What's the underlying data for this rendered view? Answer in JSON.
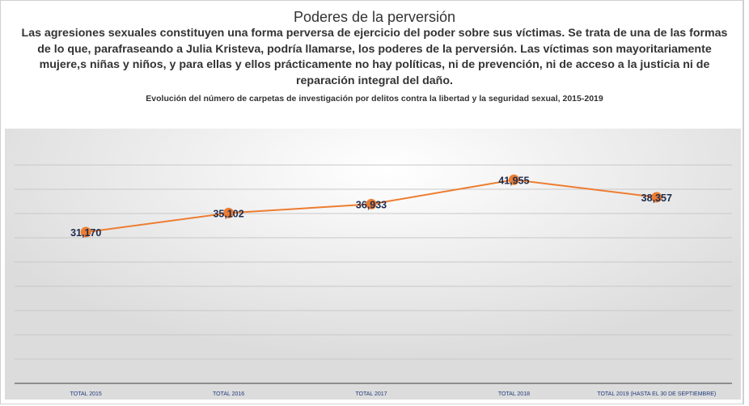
{
  "header": {
    "title": "Poderes de la perversión",
    "description": "Las agresiones sexuales constituyen una forma perversa de ejercicio del poder sobre sus víctimas. Se trata de una de las formas de lo que, parafraseando a Julia Kristeva, podría llamarse, los poderes de la perversión. Las víctimas son mayoritariamente mujere,s niñas y niños, y para ellas y ellos prácticamente no hay políticas, ni de prevención, ni de acceso a la justicia ni de reparación integral del daño.",
    "subtitle": "Evolución del número de carpetas de investigación por delitos contra la libertad y la seguridad sexual, 2015-2019"
  },
  "chart_data": {
    "type": "line",
    "title": "Evolución del número de carpetas de investigación por delitos contra la libertad y la seguridad sexual, 2015-2019",
    "categories": [
      "TOTAL 2015",
      "TOTAL 2016",
      "TOTAL 2017",
      "TOTAL 2018",
      "TOTAL 2019 (HASTA EL 30 DE SEPTIEMBRE)"
    ],
    "values": [
      31170,
      35102,
      36933,
      41955,
      38357
    ],
    "data_labels": [
      "31,170",
      "35,102",
      "36,933",
      "41,955",
      "38,357"
    ],
    "xlabel": "",
    "ylabel": "",
    "ylim": [
      0,
      50000
    ],
    "gridline_step": 5000,
    "grid": true,
    "y_tick_labels_shown": false,
    "legend": "none",
    "colors": {
      "line": "#ed7d31",
      "marker": "#ed7d31",
      "label": "#1f2d4f",
      "axis_label": "#1f3a7a"
    }
  }
}
